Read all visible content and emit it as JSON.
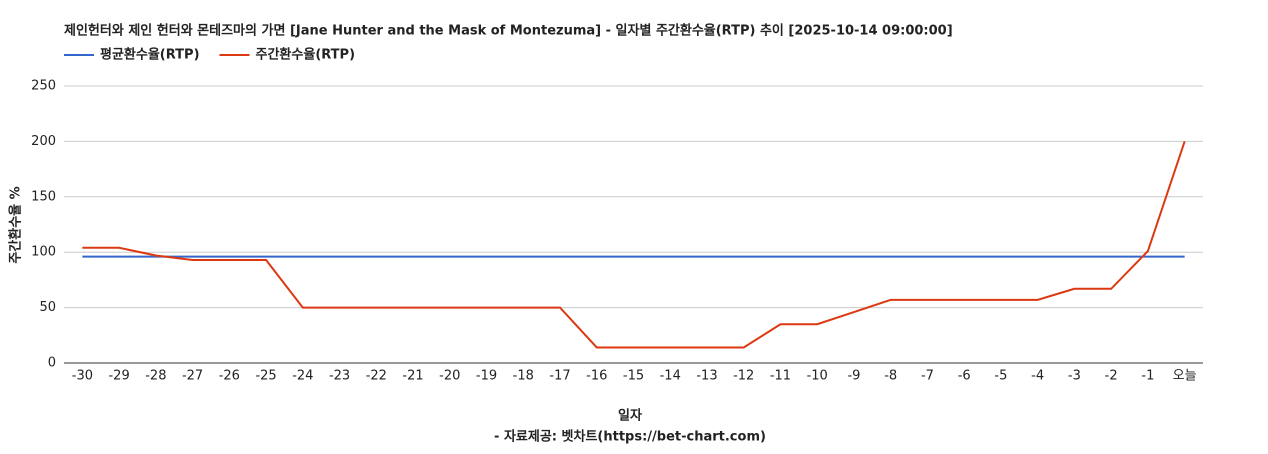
{
  "chart_data": {
    "type": "line",
    "title": "제인헌터와 제인 헌터와 몬테즈마의 가면 [Jane Hunter and the Mask of Montezuma] - 일자별 주간환수율(RTP) 추이 [2025-10-14 09:00:00]",
    "x_label": "일자",
    "y_label": "주간환수율 %",
    "source": "- 자료제공: 벳차트(https://bet-chart.com)",
    "categories": [
      "-30",
      "-29",
      "-28",
      "-27",
      "-26",
      "-25",
      "-24",
      "-23",
      "-22",
      "-21",
      "-20",
      "-19",
      "-18",
      "-17",
      "-16",
      "-15",
      "-14",
      "-13",
      "-12",
      "-11",
      "-10",
      "-9",
      "-8",
      "-7",
      "-6",
      "-5",
      "-4",
      "-3",
      "-2",
      "-1",
      "오늘"
    ],
    "series": [
      {
        "name": "평균환수율(RTP)",
        "color": "#3366cc",
        "values": [
          96,
          96,
          96,
          96,
          96,
          96,
          96,
          96,
          96,
          96,
          96,
          96,
          96,
          96,
          96,
          96,
          96,
          96,
          96,
          96,
          96,
          96,
          96,
          96,
          96,
          96,
          96,
          96,
          96,
          96,
          96
        ]
      },
      {
        "name": "주간환수율(RTP)",
        "color": "#dc3912",
        "values": [
          104,
          104,
          97,
          93,
          93,
          93,
          50,
          50,
          50,
          50,
          50,
          50,
          50,
          50,
          14,
          14,
          14,
          14,
          14,
          35,
          35,
          46,
          57,
          57,
          57,
          57,
          57,
          67,
          67,
          101,
          200
        ]
      }
    ],
    "ylim": [
      0,
      250
    ],
    "yticks": [
      0,
      50,
      100,
      150,
      200,
      250
    ],
    "grid": true
  }
}
